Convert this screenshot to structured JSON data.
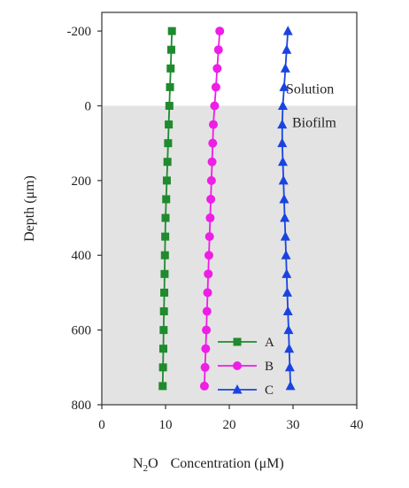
{
  "chart_data": {
    "type": "line",
    "title": "",
    "xlabel": "Concentration (μM)",
    "xlabel_prefix": "N",
    "xlabel_sub": "2",
    "xlabel_after_sub": "O",
    "ylabel": "Depth (μm)",
    "xlim": [
      0,
      40
    ],
    "ylim": [
      -250,
      800
    ],
    "y_inverted": true,
    "x_ticks": [
      0,
      10,
      20,
      30,
      40
    ],
    "x_tick_labels": [
      "0",
      "10",
      "20",
      "30",
      "40"
    ],
    "y_ticks": [
      -200,
      0,
      200,
      400,
      600,
      800
    ],
    "y_tick_labels": [
      "-200",
      "0",
      "200",
      "400",
      "600",
      "800"
    ],
    "regions": [
      {
        "label": "Solution",
        "from": -250,
        "to": 0,
        "color": "#ffffff"
      },
      {
        "label": "Biofilm",
        "from": 0,
        "to": 800,
        "color": "#e3e3e3"
      }
    ],
    "legend_position": "bottom-right",
    "series": [
      {
        "name": "A",
        "color": "#1f8a2e",
        "marker": "square",
        "x": [
          11.0,
          10.9,
          10.8,
          10.7,
          10.6,
          10.5,
          10.4,
          10.3,
          10.2,
          10.1,
          10.0,
          9.95,
          9.9,
          9.85,
          9.8,
          9.75,
          9.7,
          9.65,
          9.6,
          9.55
        ],
        "y": [
          -200,
          -150,
          -100,
          -50,
          0,
          50,
          100,
          150,
          200,
          250,
          300,
          350,
          400,
          450,
          500,
          550,
          600,
          650,
          700,
          750
        ]
      },
      {
        "name": "B",
        "color": "#ee1ee6",
        "marker": "circle",
        "x": [
          18.5,
          18.3,
          18.1,
          17.9,
          17.7,
          17.5,
          17.4,
          17.3,
          17.2,
          17.1,
          17.0,
          16.9,
          16.8,
          16.7,
          16.6,
          16.5,
          16.4,
          16.3,
          16.2,
          16.1
        ],
        "y": [
          -200,
          -150,
          -100,
          -50,
          0,
          50,
          100,
          150,
          200,
          250,
          300,
          350,
          400,
          450,
          500,
          550,
          600,
          650,
          700,
          750
        ]
      },
      {
        "name": "C",
        "color": "#1a44e0",
        "marker": "triangle",
        "x": [
          29.2,
          29.0,
          28.8,
          28.6,
          28.4,
          28.3,
          28.3,
          28.4,
          28.5,
          28.6,
          28.7,
          28.8,
          28.9,
          29.0,
          29.1,
          29.2,
          29.3,
          29.4,
          29.5,
          29.6
        ],
        "y": [
          -200,
          -150,
          -100,
          -50,
          0,
          50,
          100,
          150,
          200,
          250,
          300,
          350,
          400,
          450,
          500,
          550,
          600,
          650,
          700,
          750
        ]
      }
    ]
  }
}
